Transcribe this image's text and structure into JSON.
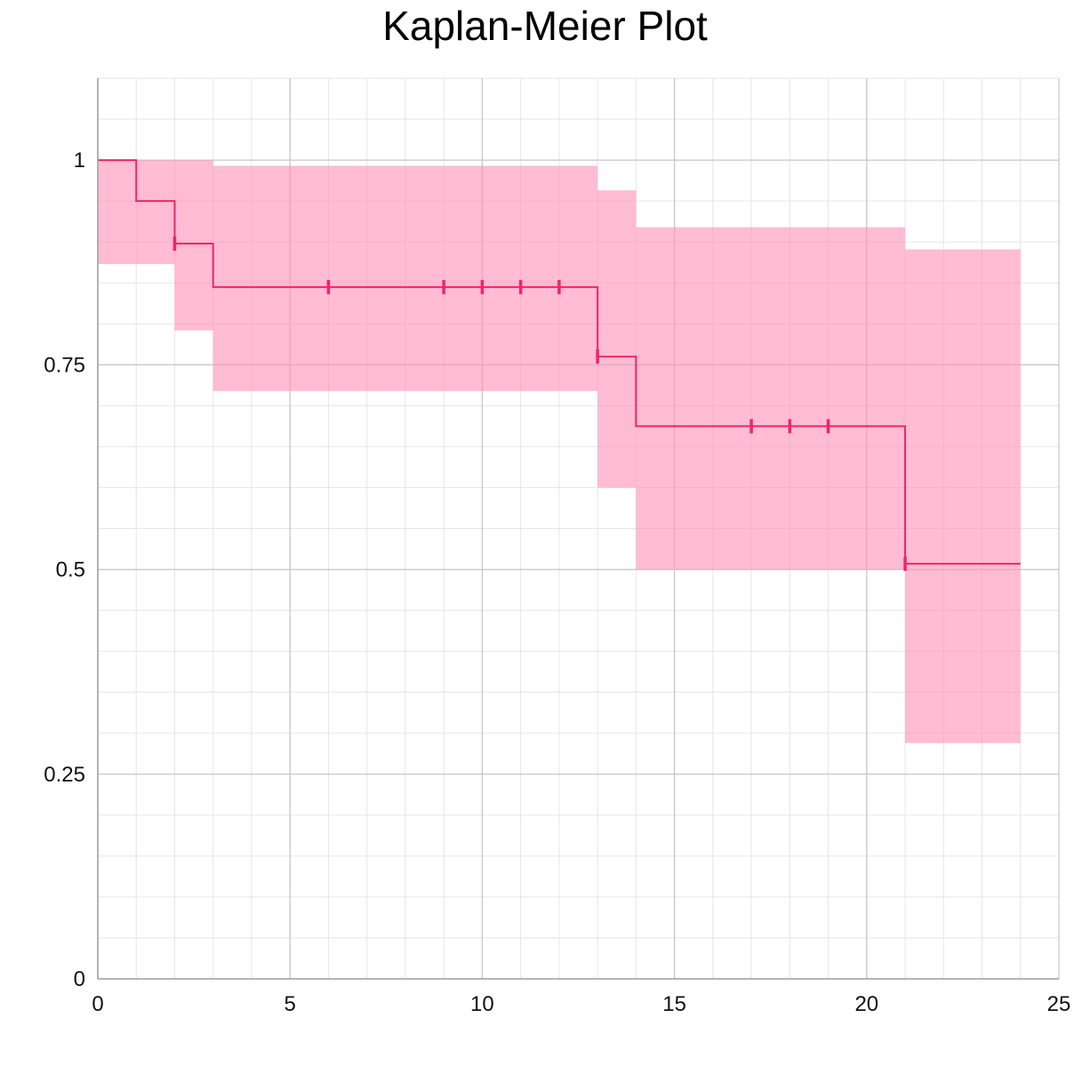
{
  "chart_data": {
    "type": "line",
    "subtype": "kaplan-meier",
    "title": "Kaplan-Meier Plot",
    "xlabel": "",
    "ylabel": "",
    "xlim": [
      0,
      25
    ],
    "ylim": [
      0,
      1.1
    ],
    "x_ticks": [
      "0",
      "5",
      "10",
      "15",
      "20",
      "25"
    ],
    "y_ticks": [
      "0",
      "0.25",
      "0.5",
      "0.75",
      "1"
    ],
    "grid": true,
    "step_curve": {
      "color": "#f0246a",
      "points": [
        {
          "x": 0,
          "y": 1.0
        },
        {
          "x": 1,
          "y": 0.95
        },
        {
          "x": 2,
          "y": 0.898
        },
        {
          "x": 3,
          "y": 0.845
        },
        {
          "x": 13,
          "y": 0.76
        },
        {
          "x": 14,
          "y": 0.675
        },
        {
          "x": 21,
          "y": 0.507
        },
        {
          "x": 24,
          "y": 0.507
        }
      ]
    },
    "confidence_band": {
      "color": "#ff8fb4",
      "segments": [
        {
          "x0": 0,
          "x1": 1,
          "lower": 0.873,
          "upper": 1.0
        },
        {
          "x0": 1,
          "x1": 2,
          "lower": 0.873,
          "upper": 1.0
        },
        {
          "x0": 2,
          "x1": 3,
          "lower": 0.792,
          "upper": 1.0
        },
        {
          "x0": 3,
          "x1": 13,
          "lower": 0.718,
          "upper": 0.993
        },
        {
          "x0": 13,
          "x1": 14,
          "lower": 0.6,
          "upper": 0.963
        },
        {
          "x0": 14,
          "x1": 21,
          "lower": 0.5,
          "upper": 0.918
        },
        {
          "x0": 21,
          "x1": 24,
          "lower": 0.288,
          "upper": 0.891
        }
      ]
    },
    "censored": [
      {
        "x": 2,
        "y": 0.898
      },
      {
        "x": 6,
        "y": 0.845
      },
      {
        "x": 9,
        "y": 0.845
      },
      {
        "x": 10,
        "y": 0.845
      },
      {
        "x": 11,
        "y": 0.845
      },
      {
        "x": 12,
        "y": 0.845
      },
      {
        "x": 13,
        "y": 0.76
      },
      {
        "x": 17,
        "y": 0.675
      },
      {
        "x": 18,
        "y": 0.675
      },
      {
        "x": 19,
        "y": 0.675
      },
      {
        "x": 21,
        "y": 0.507
      }
    ]
  }
}
